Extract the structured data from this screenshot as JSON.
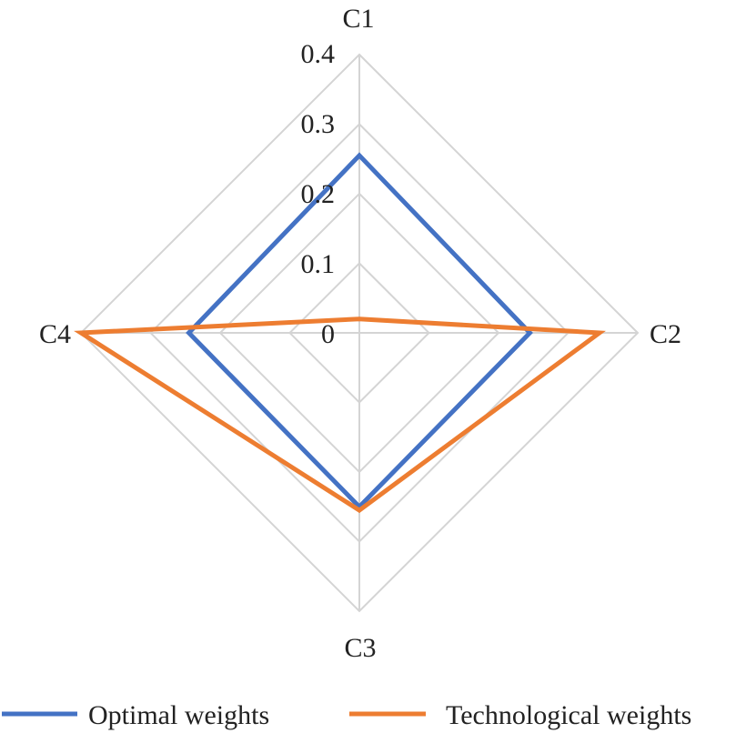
{
  "chart_data": {
    "type": "radar",
    "axes": [
      "C1",
      "C2",
      "C3",
      "C4"
    ],
    "rlim": [
      0,
      0.4
    ],
    "ticks": [
      "0",
      "0.1",
      "0.2",
      "0.3",
      "0.4"
    ],
    "tick_values": [
      0,
      0.1,
      0.2,
      0.3,
      0.4
    ],
    "grid": true,
    "legend_position": "bottom",
    "series": [
      {
        "name": "Optimal weights",
        "values": [
          0.255,
          0.245,
          0.25,
          0.245
        ],
        "color": "#4472C4"
      },
      {
        "name": "Technological weights",
        "values": [
          0.02,
          0.345,
          0.255,
          0.4
        ],
        "color": "#ED7D31"
      }
    ]
  },
  "colors": {
    "grid": "#d4d4d4"
  }
}
